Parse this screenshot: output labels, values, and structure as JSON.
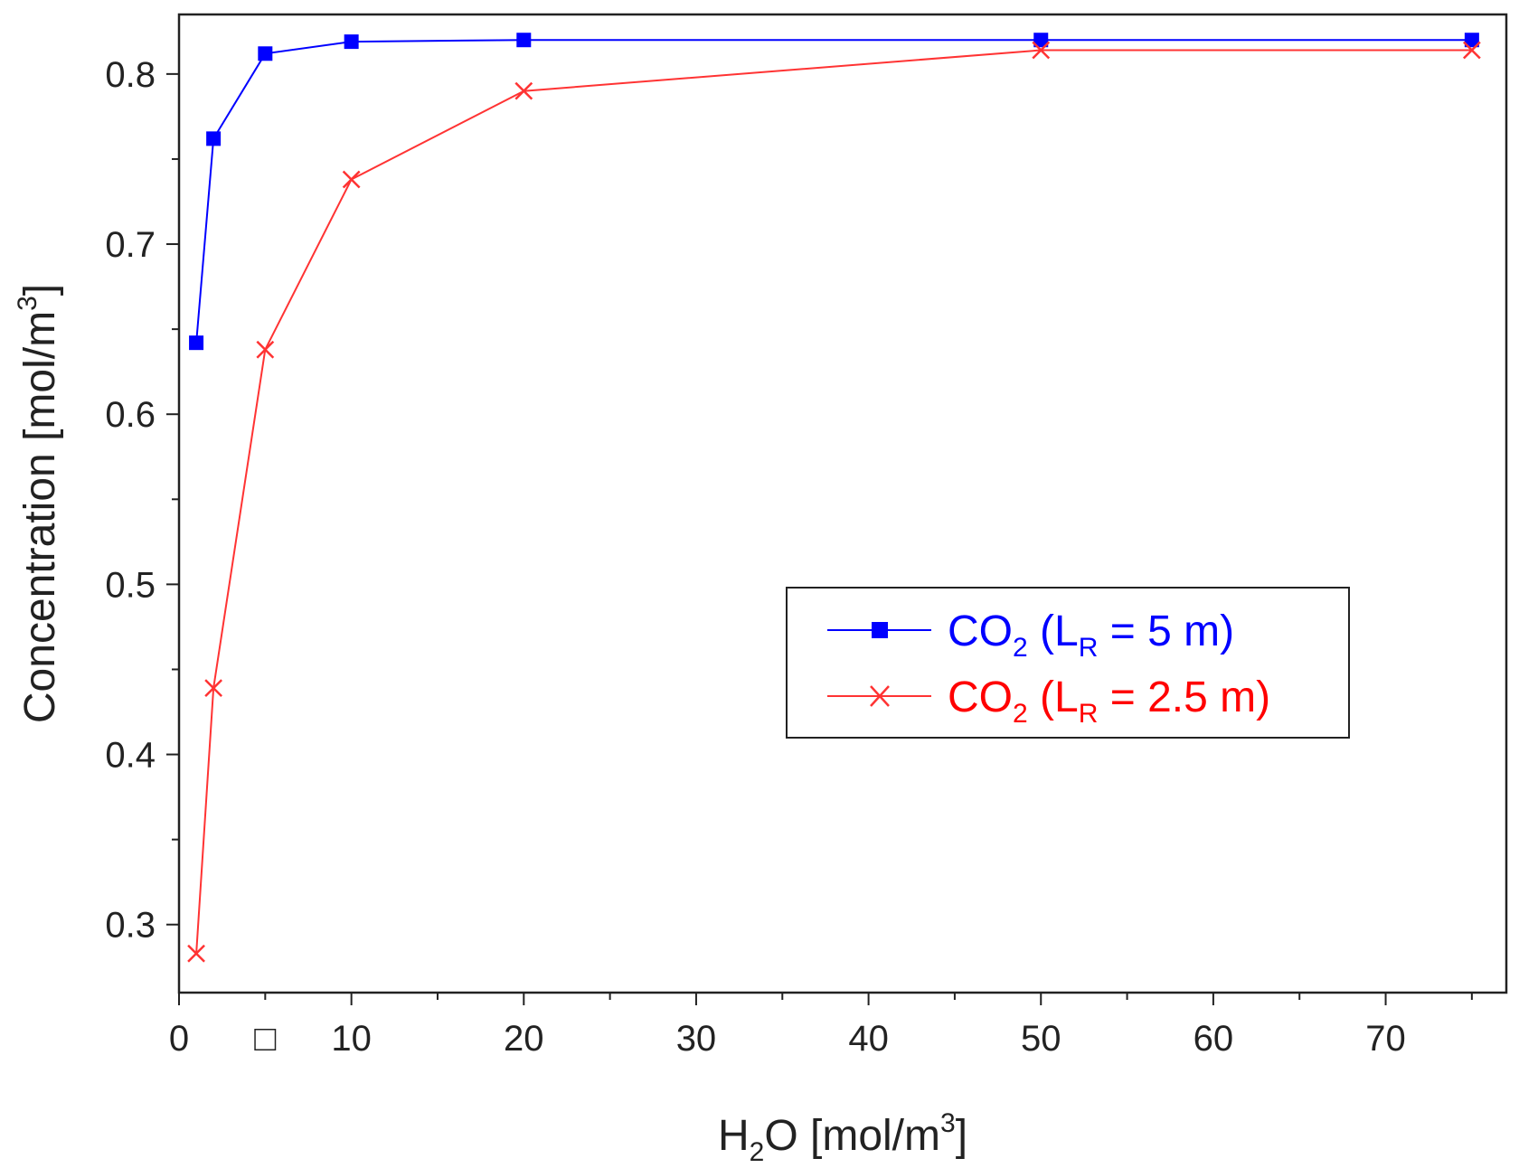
{
  "chart_data": {
    "type": "line",
    "xlabel": {
      "main": "H",
      "sub": "2",
      "rest": "O [mol/m",
      "sup": "3",
      "close": "]"
    },
    "ylabel": {
      "main": "Concentration [mol/m",
      "sup": "3",
      "close": "]"
    },
    "xlim": [
      0,
      77
    ],
    "ylim": [
      0.26,
      0.835
    ],
    "x_ticks": [
      0,
      10,
      20,
      30,
      40,
      50,
      60,
      70
    ],
    "x_tick_labels": [
      "0",
      "□",
      "10",
      "20",
      "30",
      "40",
      "50",
      "60",
      "70"
    ],
    "x_tick_label_positions": [
      0,
      5,
      10,
      20,
      30,
      40,
      50,
      60,
      70
    ],
    "x_minor_ticks": [
      5,
      15,
      25,
      35,
      45,
      55,
      65,
      75
    ],
    "y_ticks": [
      0.3,
      0.4,
      0.5,
      0.6,
      0.7,
      0.8
    ],
    "y_tick_labels": [
      "0.3",
      "0.4",
      "0.5",
      "0.6",
      "0.7",
      "0.8"
    ],
    "y_minor_ticks": [
      0.35,
      0.45,
      0.55,
      0.65,
      0.75
    ],
    "grid": false,
    "legend_position": "center-right",
    "series": [
      {
        "name": {
          "main": "CO",
          "sub": "2",
          "paren": " (L",
          "sub2": "R",
          "rest": " = 5 m)"
        },
        "color": "#0000ff",
        "marker": "square",
        "x": [
          1,
          2,
          5,
          10,
          20,
          50,
          75
        ],
        "y": [
          0.642,
          0.762,
          0.812,
          0.819,
          0.82,
          0.82,
          0.82
        ]
      },
      {
        "name": {
          "main": "CO",
          "sub": "2",
          "paren": " (L",
          "sub2": "R",
          "rest": " = 2.5 m)"
        },
        "color": "#ff3333",
        "marker": "x",
        "x": [
          1,
          2,
          5,
          10,
          20,
          50,
          75
        ],
        "y": [
          0.283,
          0.439,
          0.638,
          0.738,
          0.79,
          0.814,
          0.814
        ]
      }
    ]
  }
}
